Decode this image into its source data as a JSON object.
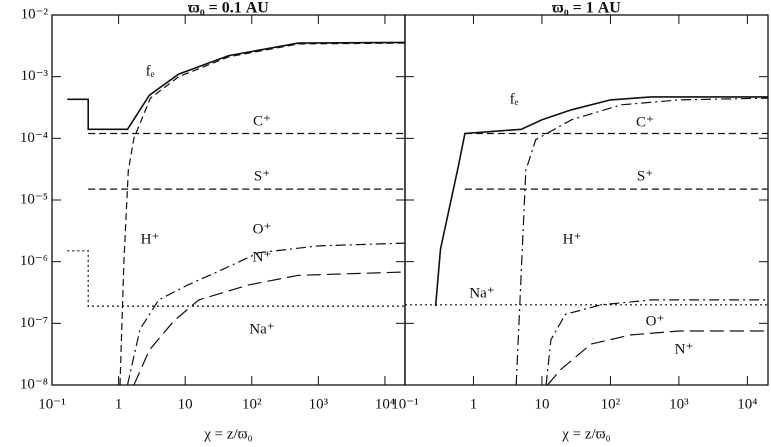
{
  "chart_data": [
    {
      "type": "line",
      "title": "ϖ₀ = 0.1 AU",
      "x_label": "χ = z/ϖ₀",
      "xscale": "log",
      "yscale": "log",
      "xlim": [
        0.1,
        20000
      ],
      "ylim": [
        1e-08,
        0.01
      ],
      "xticks": [
        {
          "value": 0.1,
          "label": "10⁻¹"
        },
        1,
        10,
        {
          "value": 100,
          "label": "10²"
        },
        {
          "value": 1000,
          "label": "10³"
        },
        {
          "value": 10000,
          "label": "10⁴"
        }
      ],
      "yticks": [
        {
          "value": 1e-08,
          "label": "10⁻⁸"
        },
        {
          "value": 1e-07,
          "label": "10⁻⁷"
        },
        {
          "value": 1e-06,
          "label": "10⁻⁶"
        },
        {
          "value": 1e-05,
          "label": "10⁻⁵"
        },
        {
          "value": 0.0001,
          "label": "10⁻⁴"
        },
        {
          "value": 0.001,
          "label": "10⁻³"
        },
        {
          "value": 0.01,
          "label": "10⁻²"
        }
      ],
      "series": [
        {
          "name": "fₑ",
          "color": "#111",
          "dash": "solid",
          "x": [
            0.17,
            0.35,
            0.35,
            1.36,
            2.9,
            8,
            45,
            500,
            20000
          ],
          "values": [
            0.00043,
            0.00043,
            0.00014,
            0.00014,
            0.0005,
            0.0011,
            0.0022,
            0.0035,
            0.0036
          ]
        },
        {
          "name": "C⁺",
          "color": "#111",
          "dash": "dashed",
          "x": [
            0.35,
            20000
          ],
          "values": [
            0.00012,
            0.00012
          ]
        },
        {
          "name": "S⁺",
          "color": "#111",
          "dash": "dashed",
          "x": [
            0.35,
            20000
          ],
          "values": [
            1.5e-05,
            1.5e-05
          ]
        },
        {
          "name": "H⁺",
          "color": "#111",
          "dash": "dashed",
          "x": [
            1.05,
            1.2,
            1.4,
            1.7,
            3,
            8,
            45,
            500,
            20000
          ],
          "values": [
            1e-08,
            1e-06,
            3e-05,
            0.0001,
            0.00045,
            0.001,
            0.0021,
            0.0034,
            0.0035
          ]
        },
        {
          "name": "O⁺",
          "color": "#111",
          "dash": "dashdot",
          "x": [
            1.36,
            2.1,
            4,
            11,
            32,
            127,
            1000,
            20000
          ],
          "values": [
            1e-08,
            8e-08,
            2.4e-07,
            4.2e-07,
            7e-07,
            1.4e-06,
            1.8e-06,
            2e-06
          ]
        },
        {
          "name": "N⁺",
          "color": "#111",
          "dash": "longdash",
          "x": [
            1.7,
            2.9,
            6.8,
            16,
            90,
            500,
            20000
          ],
          "values": [
            1e-08,
            3.7e-08,
            1.1e-07,
            2.4e-07,
            4.2e-07,
            6e-07,
            6.8e-07
          ]
        },
        {
          "name": "Na⁺",
          "color": "#111",
          "dash": "dotted",
          "x": [
            0.17,
            0.35,
            0.35,
            20000
          ],
          "values": [
            1.5e-06,
            1.5e-06,
            1.9e-07,
            1.9e-07
          ]
        }
      ]
    },
    {
      "type": "line",
      "title": "ϖ₀ = 1 AU",
      "x_label": "χ = z/ϖ₀",
      "xscale": "log",
      "yscale": "log",
      "xlim": [
        0.1,
        20000
      ],
      "ylim": [
        1e-08,
        0.01
      ],
      "xticks": [
        {
          "value": 0.1,
          "label": "10⁻¹"
        },
        1,
        10,
        {
          "value": 100,
          "label": "10²"
        },
        {
          "value": 1000,
          "label": "10³"
        },
        {
          "value": 10000,
          "label": "10⁴"
        }
      ],
      "yticks": [
        1e-08,
        1e-07,
        1e-06,
        1e-05,
        0.0001,
        0.001,
        0.01
      ],
      "series": [
        {
          "name": "fₑ",
          "color": "#111",
          "dash": "solid",
          "x": [
            0.28,
            0.33,
            0.6,
            0.75,
            5,
            10,
            27,
            100,
            400,
            20000
          ],
          "values": [
            1.9e-07,
            1.6e-06,
            3.5e-05,
            0.00012,
            0.00014,
            0.0002,
            0.00029,
            0.00042,
            0.00047,
            0.00047
          ]
        },
        {
          "name": "C⁺",
          "color": "#111",
          "dash": "dashed",
          "x": [
            0.75,
            20000
          ],
          "values": [
            0.00012,
            0.00012
          ]
        },
        {
          "name": "S⁺",
          "color": "#111",
          "dash": "dashed",
          "x": [
            0.75,
            20000
          ],
          "values": [
            1.5e-05,
            1.5e-05
          ]
        },
        {
          "name": "H⁺",
          "color": "#111",
          "dash": "dashdot",
          "x": [
            4.2,
            5.8,
            8.1,
            27,
            145,
            1000,
            20000
          ],
          "values": [
            1e-08,
            3e-05,
            9.5e-05,
            0.0002,
            0.00035,
            0.00042,
            0.00045
          ]
        },
        {
          "name": "O⁺",
          "color": "#111",
          "dash": "dashdot",
          "x": [
            11.5,
            13.5,
            22,
            73,
            400,
            20000
          ],
          "values": [
            1e-08,
            5.4e-08,
            1.4e-07,
            2e-07,
            2.4e-07,
            2.4e-07
          ]
        },
        {
          "name": "N⁺",
          "color": "#111",
          "dash": "longdash",
          "x": [
            12,
            19,
            52,
            200,
            1000,
            20000
          ],
          "values": [
            1e-08,
            1.8e-08,
            4.6e-08,
            6.5e-08,
            7.5e-08,
            7.5e-08
          ]
        },
        {
          "name": "Na⁺",
          "color": "#111",
          "dash": "dotted",
          "x": [
            0.1,
            20000
          ],
          "values": [
            2e-07,
            2e-07
          ]
        }
      ]
    }
  ]
}
